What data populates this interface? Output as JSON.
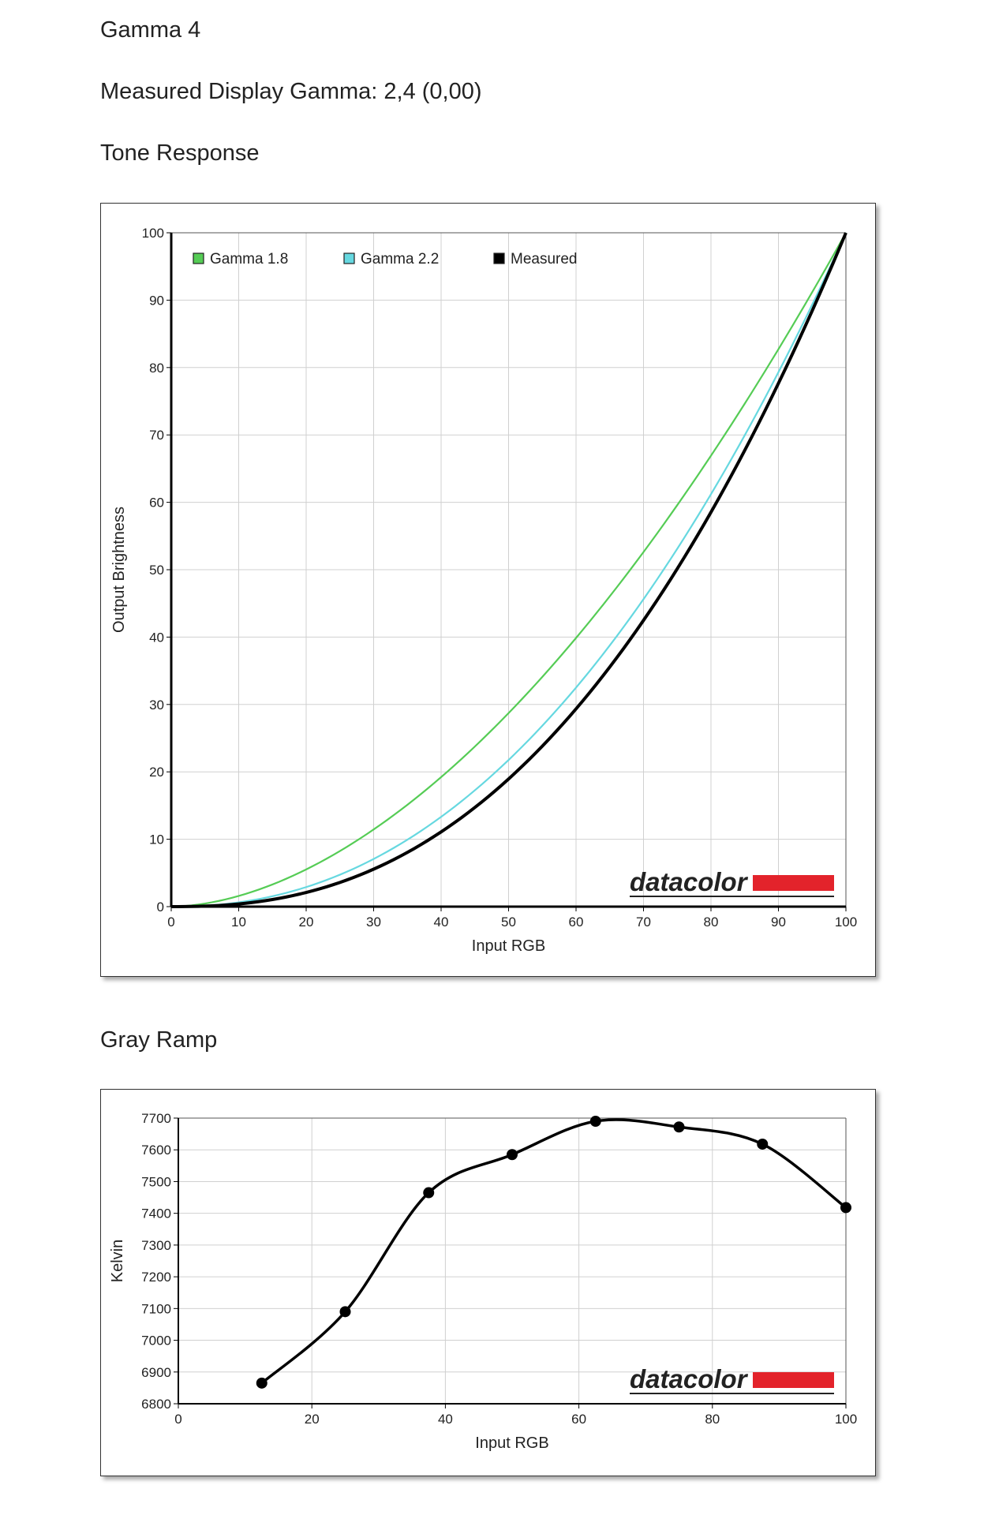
{
  "page": {
    "heading": "Gamma 4",
    "measured_gamma": "Measured Display Gamma: 2,4 (0,00)",
    "tone_section": "Tone Response",
    "gray_section": "Gray Ramp"
  },
  "logo": {
    "text": "datacolor",
    "brand_color": "#e3232b"
  },
  "chart_data": [
    {
      "type": "line",
      "title": "Tone Response",
      "xlabel": "Input RGB",
      "ylabel": "Output Brightness",
      "xlim": [
        0,
        100
      ],
      "ylim": [
        0,
        100
      ],
      "xticks": [
        0,
        10,
        20,
        30,
        40,
        50,
        60,
        70,
        80,
        90,
        100
      ],
      "yticks": [
        0,
        10,
        20,
        30,
        40,
        50,
        60,
        70,
        80,
        90,
        100
      ],
      "grid": true,
      "legend": "top-left",
      "series": [
        {
          "name": "Gamma 1.8",
          "color": "#55cc55",
          "gamma": 1.8
        },
        {
          "name": "Gamma 2.2",
          "color": "#66d8e0",
          "gamma": 2.2
        },
        {
          "name": "Measured",
          "color": "#000000",
          "gamma": 2.4
        }
      ]
    },
    {
      "type": "line",
      "title": "Gray Ramp",
      "xlabel": "Input RGB",
      "ylabel": "Kelvin",
      "xlim": [
        0,
        100
      ],
      "ylim": [
        6800,
        7700
      ],
      "xticks": [
        0,
        20,
        40,
        60,
        80,
        100
      ],
      "yticks": [
        6800,
        6900,
        7000,
        7100,
        7200,
        7300,
        7400,
        7500,
        7600,
        7700
      ],
      "grid": true,
      "series": [
        {
          "name": "",
          "color": "#000000",
          "x": [
            12.5,
            25,
            37.5,
            50,
            62.5,
            75,
            87.5,
            100
          ],
          "y": [
            6865,
            7090,
            7465,
            7585,
            7690,
            7672,
            7618,
            7418
          ]
        }
      ]
    }
  ]
}
